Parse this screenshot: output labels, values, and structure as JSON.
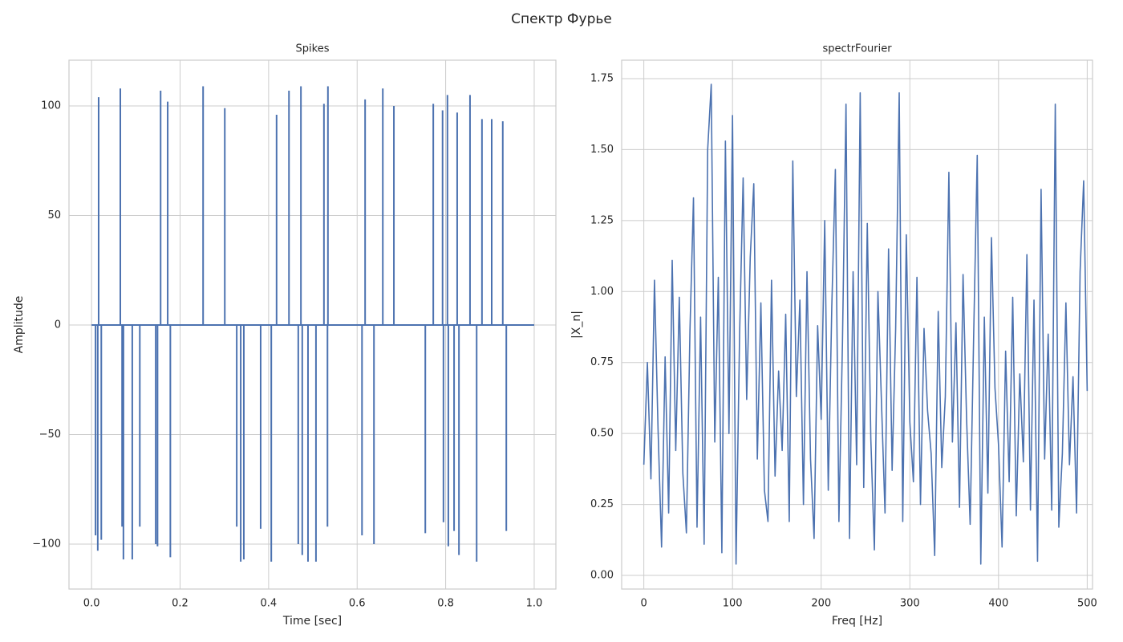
{
  "title": "Спектр Фурье",
  "chart_data": [
    {
      "type": "stem",
      "title": "Spikes",
      "x_label": "Time [sec]",
      "y_label": "Amplitude",
      "color": "#4c72b0",
      "grid": true,
      "xlim": [
        -0.051,
        1.049
      ],
      "ylim": [
        -120.5,
        120.9
      ],
      "xticks": [
        {
          "value": 0,
          "label": "0.0"
        },
        0.2,
        0.4,
        0.6,
        0.8,
        {
          "value": 1,
          "label": "1.0"
        }
      ],
      "yticks": [
        {
          "value": -100,
          "label": "−100"
        },
        {
          "value": -50,
          "label": "−50"
        },
        0,
        50,
        100
      ],
      "x": [
        0,
        0.009,
        0.014,
        0.016,
        0.022,
        0.065,
        0.069,
        0.072,
        0.092,
        0.109,
        0.145,
        0.149,
        0.156,
        0.172,
        0.178,
        0.252,
        0.301,
        0.328,
        0.337,
        0.344,
        0.382,
        0.406,
        0.418,
        0.446,
        0.467,
        0.473,
        0.476,
        0.489,
        0.507,
        0.525,
        0.533,
        0.534,
        0.611,
        0.618,
        0.638,
        0.658,
        0.683,
        0.754,
        0.772,
        0.793,
        0.795,
        0.804,
        0.806,
        0.819,
        0.826,
        0.83,
        0.855,
        0.87,
        0.882,
        0.904,
        0.929,
        0.937,
        1
      ],
      "values": [
        0,
        -96,
        -103,
        104,
        -98,
        108,
        -92,
        -107,
        -107,
        -92,
        -100,
        -101,
        107,
        102,
        -106,
        109,
        99,
        -92,
        -108,
        -107,
        -93,
        -108,
        96,
        107,
        -100,
        109,
        -105,
        -108,
        -108,
        101,
        -92,
        109,
        -96,
        103,
        -100,
        108,
        100,
        -95,
        101,
        98,
        -90,
        105,
        -101,
        -94,
        97,
        -105,
        105,
        -108,
        94,
        94,
        93,
        -94,
        0
      ]
    },
    {
      "type": "line",
      "title": "spectrFourier",
      "x_label": "Freq [Hz]",
      "y_label": "|X_n|",
      "color": "#4c72b0",
      "grid": true,
      "xlim": [
        -25,
        506
      ],
      "ylim": [
        -0.048,
        1.815
      ],
      "xticks": [
        0,
        100,
        200,
        300,
        400,
        500
      ],
      "yticks": [
        {
          "value": 0,
          "label": "0.00"
        },
        {
          "value": 0.25,
          "label": "0.25"
        },
        {
          "value": 0.5,
          "label": "0.50"
        },
        {
          "value": 0.75,
          "label": "0.75"
        },
        {
          "value": 1,
          "label": "1.00"
        },
        {
          "value": 1.25,
          "label": "1.25"
        },
        {
          "value": 1.5,
          "label": "1.50"
        },
        {
          "value": 1.75,
          "label": "1.75"
        }
      ],
      "x": [
        0,
        4,
        8,
        12,
        16,
        20,
        24,
        28,
        32,
        36,
        40,
        44,
        48,
        52,
        56,
        60,
        64,
        68,
        72,
        76,
        80,
        84,
        88,
        92,
        96,
        100,
        104,
        108,
        112,
        116,
        120,
        124,
        128,
        132,
        136,
        140,
        144,
        148,
        152,
        156,
        160,
        164,
        168,
        172,
        176,
        180,
        184,
        188,
        192,
        196,
        200,
        204,
        208,
        212,
        216,
        220,
        224,
        228,
        232,
        236,
        240,
        244,
        248,
        252,
        256,
        260,
        264,
        268,
        272,
        276,
        280,
        284,
        288,
        292,
        296,
        300,
        304,
        308,
        312,
        316,
        320,
        324,
        328,
        332,
        336,
        340,
        344,
        348,
        352,
        356,
        360,
        364,
        368,
        372,
        376,
        380,
        384,
        388,
        392,
        396,
        400,
        404,
        408,
        412,
        416,
        420,
        424,
        428,
        432,
        436,
        440,
        444,
        448,
        452,
        456,
        460,
        464,
        468,
        472,
        476,
        480,
        484,
        488,
        492,
        496,
        500
      ],
      "values": [
        0.39,
        0.75,
        0.34,
        1.04,
        0.52,
        0.1,
        0.77,
        0.22,
        1.11,
        0.44,
        0.98,
        0.36,
        0.15,
        0.86,
        1.33,
        0.17,
        0.91,
        0.11,
        1.5,
        1.73,
        0.47,
        1.05,
        0.08,
        1.53,
        0.5,
        1.62,
        0.04,
        0.85,
        1.4,
        0.62,
        1.12,
        1.38,
        0.41,
        0.96,
        0.3,
        0.19,
        1.04,
        0.35,
        0.72,
        0.44,
        0.92,
        0.19,
        1.46,
        0.63,
        0.97,
        0.25,
        1.07,
        0.41,
        0.13,
        0.88,
        0.55,
        1.25,
        0.3,
        0.95,
        1.43,
        0.19,
        0.82,
        1.66,
        0.13,
        1.07,
        0.39,
        1.7,
        0.31,
        1.24,
        0.48,
        0.09,
        1,
        0.61,
        0.22,
        1.15,
        0.37,
        0.87,
        1.7,
        0.19,
        1.2,
        0.54,
        0.33,
        1.05,
        0.25,
        0.87,
        0.58,
        0.43,
        0.07,
        0.93,
        0.38,
        0.63,
        1.42,
        0.47,
        0.89,
        0.24,
        1.06,
        0.55,
        0.18,
        0.85,
        1.48,
        0.04,
        0.91,
        0.29,
        1.19,
        0.66,
        0.46,
        0.1,
        0.79,
        0.33,
        0.98,
        0.21,
        0.71,
        0.4,
        1.13,
        0.23,
        0.97,
        0.05,
        1.36,
        0.41,
        0.85,
        0.23,
        1.66,
        0.17,
        0.43,
        0.96,
        0.39,
        0.7,
        0.22,
        1.07,
        1.39,
        0.65
      ]
    }
  ]
}
